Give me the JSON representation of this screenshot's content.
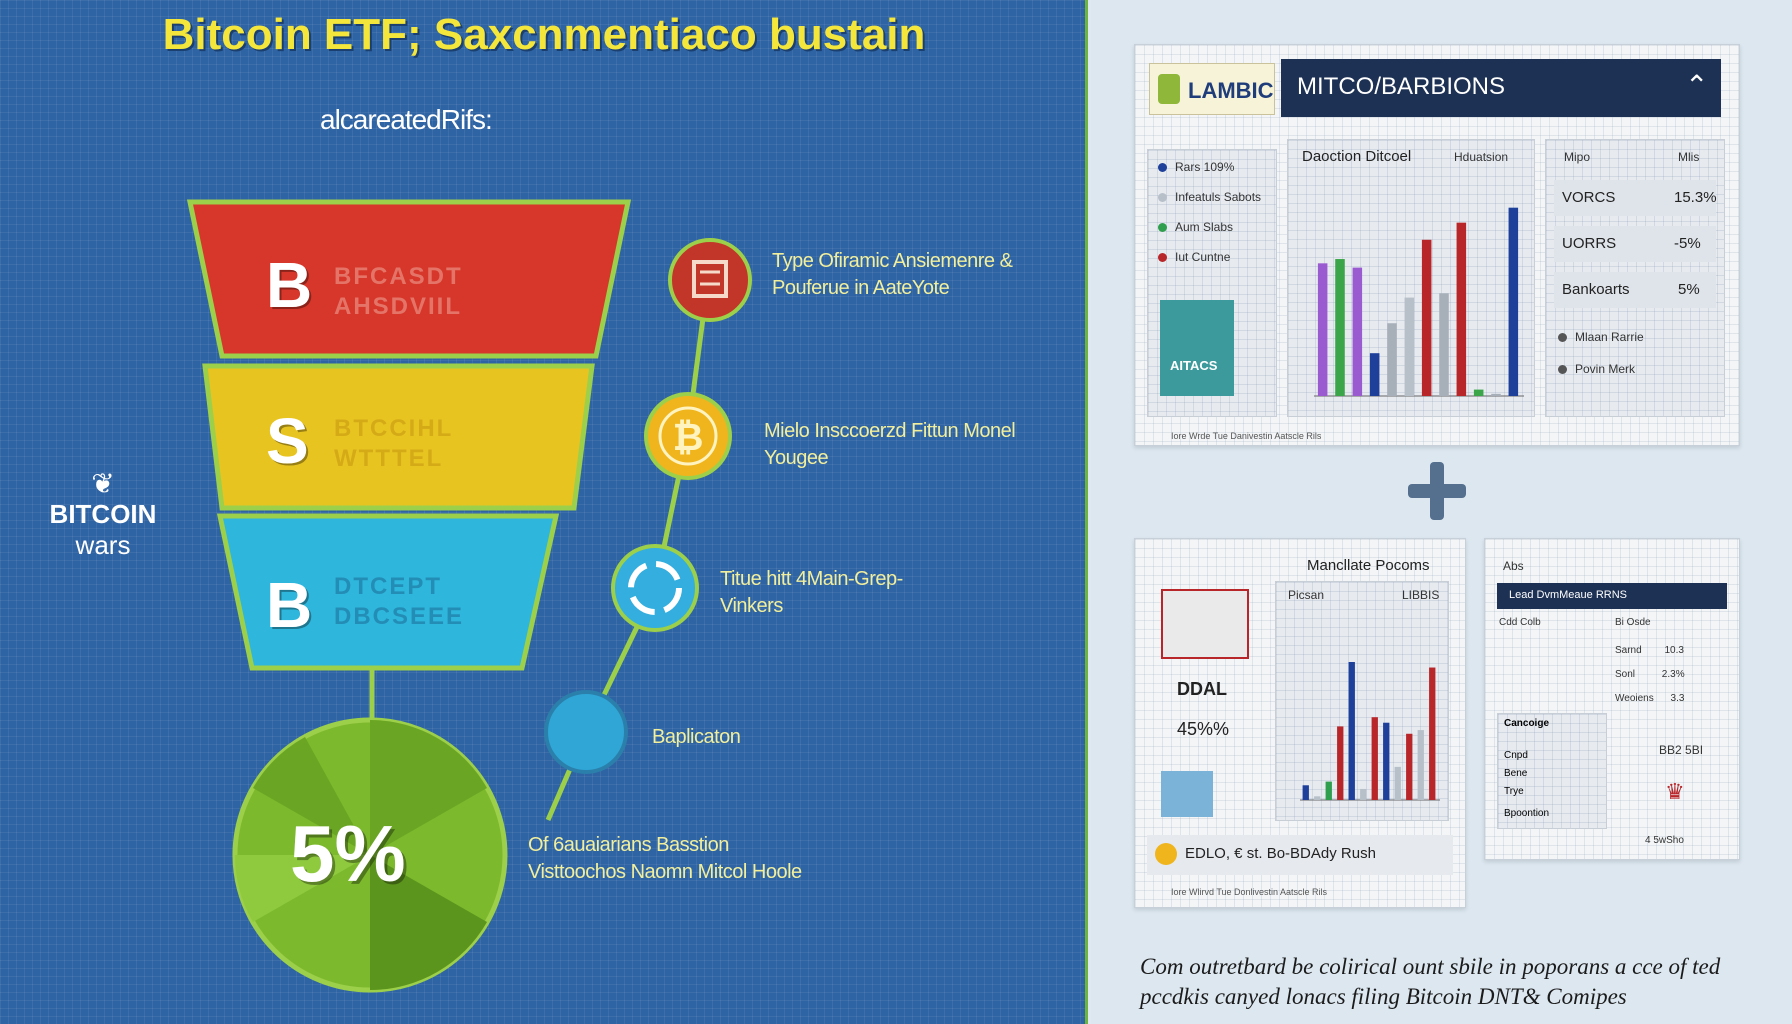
{
  "left": {
    "title": "Bitcoin ETF; Saxcnmentiaco bustain",
    "subtitle": "alcareatedRifs:",
    "brand": {
      "line1": "BITCOIN",
      "line2": "wars",
      "logo_icon": "bitcoin-wars-logo-icon"
    },
    "tiers": [
      {
        "letter": "B",
        "text": "BFCASDT\nAHSDVIIL",
        "color": "#d6372a",
        "text_color": "#f2a79b"
      },
      {
        "letter": "S",
        "text": "BTCCIHL\nWTTTEL",
        "color": "#e8c421",
        "text_color": "#c49510"
      },
      {
        "letter": "B",
        "text": "DTCEPT\nDBCSEEE",
        "color": "#2eb6dc",
        "text_color": "#1b6c98"
      }
    ],
    "pie": {
      "label": "5%",
      "color": "#7cb92d"
    },
    "steps": [
      {
        "icon": "bank-icon",
        "line1": "Type Ofiramic Ansiemenre &",
        "line2": "Pouferue in AateYote",
        "color": "#c2362a"
      },
      {
        "icon": "bitcoin-coin-icon",
        "line1": "Mielo Insccoerzd Fittun Monel",
        "line2": "Yougee",
        "color": "#f0b51d"
      },
      {
        "icon": "cycle-arrows-icon",
        "line1": "Titue hitt 4Main-Grep-",
        "line2": "Vinkers",
        "color": "#33aede"
      },
      {
        "icon": "blank-circle-icon",
        "line1": "Baplicaton",
        "line2": "",
        "color": "#2fa6d6"
      }
    ],
    "footnote": {
      "line1": "Of 6auaiarians Basstion",
      "line2": "Visttoochos Naomn Mitcol Hoole"
    }
  },
  "right": {
    "card1": {
      "logo": "LAMBIC",
      "header": "MITCO/BARBIONS",
      "header_icon": "chevron-up-icon",
      "legend": [
        {
          "label": "Rars 109%",
          "color": "#1e3f9a"
        },
        {
          "label": "Infeatuls Sabots",
          "color": "#b7bfc8"
        },
        {
          "label": "Aum Slabs",
          "color": "#2f9e4d"
        },
        {
          "label": "Iut Cuntne",
          "color": "#b8262a"
        }
      ],
      "badge": "AITACS",
      "footer": "Iore Wrde Tue Danivestin Aatscle Rils",
      "chart_title": "Daoction Ditcoel",
      "chart_title_right": "Hduatsion",
      "table": {
        "head": [
          "Mipo",
          "Mlis"
        ],
        "rows": [
          {
            "label": "VORCS",
            "value": "15.3%"
          },
          {
            "label": "UORRS",
            "value": "-5%"
          },
          {
            "label": "Bankoarts",
            "value": "5%"
          }
        ],
        "extra": [
          "Mlaan Rarrie",
          "Povin Merk"
        ]
      }
    },
    "card2": {
      "title": "Mancllate Pocoms",
      "subtitle_left": "Picsan",
      "subtitle_right": "LIBBIS",
      "stat_label": "DDAL",
      "stat_value": "45%%",
      "coin_text": "EDLO, € st. Bo-BDAdy Rush",
      "footer": "Iore Wlirvd Tue Donlivestin Aatscle Rils"
    },
    "card3": {
      "brand": "Abs",
      "header": "Lead DvmMeaue RRNS",
      "rows": [
        [
          "Cdd Colb",
          "Bi Osde"
        ],
        [
          "Sarnd",
          "10.3"
        ],
        [
          "Sonl",
          "2.3%"
        ],
        [
          "Weoiens",
          "3.3"
        ]
      ],
      "section": "Cancoige",
      "section_rows": [
        "Cnpd",
        "Bene",
        "Trye",
        "Bpoontion"
      ],
      "right_text": "BB2 5BI",
      "footer": "4 5wSho"
    },
    "caption": {
      "line1": "Com outretbard be colirical ount sbile in poporans a cce of ted",
      "line2": "pccdkis canyed lonacs filing Bitcoin DNT& Comipes"
    }
  },
  "chart_data": [
    {
      "type": "bar",
      "title": "Daoction Ditcoel",
      "xlabel": "",
      "ylabel": "",
      "series": [
        {
          "name": "",
          "values": [
            62,
            64,
            60,
            20,
            34,
            46,
            73,
            48,
            81,
            3,
            1,
            88
          ],
          "colors": [
            "#9b5bd0",
            "#3aa549",
            "#9b5bd0",
            "#1e3f9a",
            "#a7afb8",
            "#b7bfc8",
            "#b8262a",
            "#a7afb8",
            "#b8262a",
            "#3aa549",
            "#a7afb8",
            "#1e3f9a"
          ]
        }
      ],
      "ylim": [
        0,
        100
      ]
    },
    {
      "type": "bar",
      "title": "Mancllate Pocoms",
      "xlabel": "",
      "ylabel": "",
      "series": [
        {
          "name": "",
          "values": [
            8,
            2,
            10,
            40,
            75,
            6,
            45,
            42,
            18,
            36,
            38,
            72
          ],
          "colors": [
            "#1e3f9a",
            "#b7bfc8",
            "#2f9e4d",
            "#b8262a",
            "#1e3f9a",
            "#b7bfc8",
            "#b8262a",
            "#1e3f9a",
            "#b7bfc8",
            "#b8262a",
            "#b7bfc8",
            "#b8262a"
          ]
        }
      ],
      "ylim": [
        0,
        100
      ]
    }
  ]
}
